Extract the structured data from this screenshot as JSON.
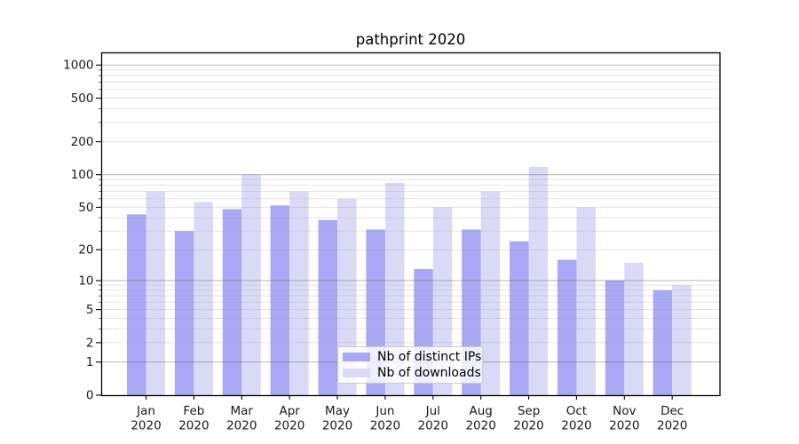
{
  "chart_data": {
    "type": "bar",
    "title": "pathprint 2020",
    "categories": [
      "Jan",
      "Feb",
      "Mar",
      "Apr",
      "May",
      "Jun",
      "Jul",
      "Aug",
      "Sep",
      "Oct",
      "Nov",
      "Dec"
    ],
    "x_year": "2020",
    "series": [
      {
        "name": "Nb of distinct IPs",
        "color": "#a8a8f5",
        "values": [
          43,
          30,
          48,
          52,
          38,
          31,
          13,
          31,
          24,
          16,
          10,
          8
        ]
      },
      {
        "name": "Nb of downloads",
        "color": "#dadaf7",
        "values": [
          70,
          56,
          100,
          70,
          60,
          84,
          50,
          70,
          118,
          50,
          15,
          9
        ]
      }
    ],
    "yscale": "log1p",
    "ylim": [
      0,
      1270
    ],
    "yticks": [
      0,
      1,
      2,
      5,
      10,
      20,
      50,
      100,
      200,
      500,
      1000
    ],
    "ytick_decades": [
      1,
      10,
      100,
      1000
    ],
    "yticks_minor": [
      3,
      4,
      6,
      7,
      8,
      9,
      30,
      40,
      60,
      70,
      80,
      90,
      300,
      400,
      600,
      700,
      800,
      900
    ],
    "grid": true,
    "legend_position": "lower center",
    "colors": {
      "grid_major": "rgba(100,100,100,0.42)",
      "grid_minor": "rgba(150,150,150,0.28)",
      "spine": "#000000",
      "tick_text": "#1a1a1a",
      "legend_border": "#cccccc",
      "legend_bg": "rgba(255,255,255,0.8)"
    }
  }
}
